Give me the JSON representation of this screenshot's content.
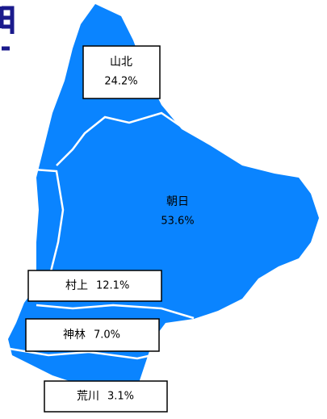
{
  "regions": {
    "names": [
      "山北",
      "朝日",
      "村上",
      "神林",
      "荒川"
    ],
    "values": [
      24.2,
      53.6,
      12.1,
      7.0,
      3.1
    ],
    "value_labels": [
      "24.2%",
      "53.6%",
      "12.1%",
      "7.0%",
      "3.1%"
    ]
  }
}
